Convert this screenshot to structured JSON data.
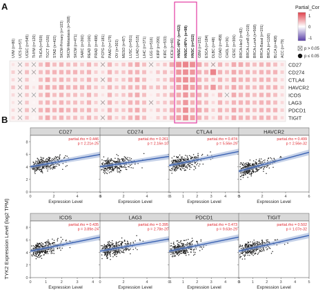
{
  "panels": {
    "a": "A",
    "b": "B"
  },
  "legend": {
    "title": "Partial_Cor",
    "ticks": [
      "1",
      "0",
      "-1"
    ],
    "dots": [
      "p > 0.05",
      "p ≤ 0.05"
    ]
  },
  "chart_data": [
    {
      "type": "heatmap",
      "columns": [
        "UVM (n=80)",
        "UCS (n=57)",
        "UCEC (n=545)",
        "THYM (n=120)",
        "THCA (n=509)",
        "TGCT (n=150)",
        "STAD (n=415)",
        "SKCM-Primary (n=103)",
        "SKCM-Metastasis (n=368)",
        "SKCM (n=471)",
        "SARC (n=260)",
        "READ (n=166)",
        "PRAD (n=498)",
        "PCPG (n=181)",
        "PAAD (n=179)",
        "OV (n=303)",
        "MESO (n=87)",
        "LUSC (n=501)",
        "LUAD (n=515)",
        "LIHC (n=371)",
        "LGG (n=516)",
        "KIRP (n=290)",
        "KIRC (n=533)",
        "KICH (n=66)",
        "HNSC-HPV- (n=422)",
        "HNSC-HPV+ (n=98)",
        "HNSC (n=522)",
        "GBM (n=153)",
        "ESCA (n=184)",
        "DLBC (n=48)",
        "COAD (n=458)",
        "CHOL (n=36)",
        "CESC (n=306)",
        "BRCA-Her2 (n=82)",
        "BRCA-LumB (n=219)",
        "BRCA-LumA (n=568)",
        "BRCA-Basal (n=191)",
        "BRCA (n=1100)",
        "BLCA (n=408)",
        "ACC (n=79)"
      ],
      "rows": [
        "CD27",
        "CD274",
        "CTLA4",
        "HAVCR2",
        "ICOS",
        "LAG3",
        "PDCD1",
        "TIGIT"
      ],
      "values": [
        [
          0.15,
          -0.05,
          0.3,
          0.05,
          0.35,
          0.45,
          0.35,
          0.4,
          0.35,
          0.35,
          0.3,
          0.4,
          0.3,
          0.15,
          0.4,
          0.25,
          0.3,
          0.4,
          0.45,
          0.35,
          0.1,
          0.25,
          0.3,
          0.45,
          0.6,
          0.65,
          0.6,
          0.45,
          0.35,
          0.2,
          0.4,
          0.3,
          0.45,
          0.45,
          0.4,
          0.35,
          0.4,
          0.4,
          0.35,
          0.2
        ],
        [
          0.25,
          0.1,
          0.35,
          0.1,
          0.35,
          0.4,
          0.4,
          0.4,
          0.4,
          0.4,
          0.35,
          0.4,
          0.25,
          0.2,
          0.4,
          0.3,
          0.3,
          0.4,
          0.4,
          0.35,
          0.15,
          0.3,
          0.35,
          0.25,
          0.55,
          0.6,
          0.55,
          0.4,
          0.4,
          0.65,
          0.4,
          0.35,
          0.45,
          0.4,
          0.4,
          0.35,
          0.4,
          0.4,
          0.4,
          0.25
        ],
        [
          0.2,
          0.05,
          0.3,
          0.05,
          0.35,
          0.45,
          0.35,
          0.4,
          0.35,
          0.35,
          0.3,
          0.4,
          0.3,
          0.15,
          0.4,
          0.25,
          0.3,
          0.4,
          0.45,
          0.35,
          0.1,
          0.25,
          0.3,
          0.4,
          0.55,
          0.6,
          0.55,
          0.4,
          0.35,
          0.3,
          0.4,
          0.3,
          0.45,
          0.4,
          0.4,
          0.35,
          0.4,
          0.4,
          0.35,
          0.2
        ],
        [
          0.3,
          0.1,
          0.35,
          0.15,
          0.4,
          0.45,
          0.4,
          0.45,
          0.4,
          0.4,
          0.4,
          0.4,
          0.3,
          0.25,
          0.4,
          0.3,
          0.35,
          0.4,
          0.4,
          0.4,
          0.3,
          0.35,
          0.35,
          0.3,
          0.5,
          0.6,
          0.5,
          0.45,
          0.4,
          0.55,
          0.4,
          0.35,
          0.45,
          0.4,
          0.4,
          0.35,
          0.4,
          0.4,
          0.4,
          0.25
        ],
        [
          0.2,
          0.05,
          0.3,
          -0.05,
          0.35,
          0.45,
          0.35,
          0.4,
          0.35,
          0.35,
          0.3,
          0.4,
          0.3,
          0.15,
          0.4,
          0.25,
          0.3,
          0.4,
          0.45,
          0.35,
          0.1,
          0.25,
          0.3,
          0.4,
          0.45,
          0.55,
          0.45,
          0.4,
          0.35,
          0.15,
          0.4,
          0.05,
          0.45,
          0.4,
          0.4,
          0.35,
          0.4,
          0.4,
          0.35,
          0.2
        ],
        [
          0.15,
          -0.05,
          0.3,
          0.05,
          0.35,
          0.4,
          0.35,
          0.4,
          0.35,
          0.35,
          0.3,
          0.4,
          0.25,
          0.15,
          0.4,
          0.25,
          0.3,
          0.4,
          0.4,
          0.35,
          0.15,
          0.25,
          0.3,
          0.35,
          0.4,
          0.55,
          0.4,
          0.4,
          0.35,
          0.2,
          0.4,
          0.3,
          0.4,
          0.4,
          0.4,
          0.35,
          0.4,
          0.4,
          0.35,
          0.2
        ],
        [
          0.2,
          0.05,
          0.35,
          0.05,
          0.4,
          0.45,
          0.4,
          0.45,
          0.4,
          0.4,
          0.35,
          0.4,
          0.3,
          0.2,
          0.4,
          0.3,
          0.3,
          0.4,
          0.45,
          0.35,
          0.15,
          0.3,
          0.3,
          0.4,
          0.45,
          0.6,
          0.45,
          0.45,
          0.4,
          0.25,
          0.4,
          0.35,
          0.45,
          0.4,
          0.4,
          0.35,
          0.4,
          0.4,
          0.4,
          0.25
        ],
        [
          0.2,
          0.05,
          0.3,
          0.05,
          0.35,
          0.45,
          0.35,
          0.4,
          0.35,
          0.35,
          0.3,
          0.4,
          0.3,
          0.15,
          0.4,
          0.25,
          0.3,
          0.4,
          0.45,
          0.35,
          0.1,
          0.25,
          0.3,
          0.4,
          0.5,
          0.6,
          0.5,
          0.4,
          0.35,
          0.2,
          0.4,
          0.3,
          0.45,
          0.4,
          0.4,
          0.35,
          0.4,
          0.4,
          0.35,
          0.2
        ]
      ],
      "not_significant": [
        [
          0,
          1
        ],
        [
          0,
          3
        ],
        [
          0,
          13
        ],
        [
          0,
          20
        ],
        [
          0,
          29
        ],
        [
          1,
          1
        ],
        [
          1,
          3
        ],
        [
          2,
          1
        ],
        [
          2,
          13
        ],
        [
          3,
          1
        ],
        [
          4,
          1
        ],
        [
          4,
          3
        ],
        [
          4,
          31
        ],
        [
          5,
          1
        ],
        [
          5,
          13
        ],
        [
          5,
          20
        ],
        [
          6,
          1
        ],
        [
          6,
          3
        ],
        [
          7,
          1
        ],
        [
          7,
          13
        ]
      ],
      "highlighted_columns": [
        "HNSC-HPV- (n=422)",
        "HNSC-HPV+ (n=98)",
        "HNSC (n=522)"
      ],
      "colors": {
        "positive": "#e0424c",
        "negative": "#5a3fa8",
        "highlight_box": "#e23aa0"
      }
    },
    {
      "type": "scatter",
      "title": "CD27",
      "stat": {
        "rho": "partial.rho = 0.446",
        "p": "p = 2.21e-25"
      },
      "xlim": [
        0,
        6
      ],
      "ylim": [
        0,
        9
      ],
      "xticks": [
        "0",
        "2",
        "4",
        "6"
      ],
      "yticks": [
        "0",
        "2",
        "4",
        "6",
        "8"
      ],
      "fit": {
        "intercept": 4.0,
        "slope": 0.33
      }
    },
    {
      "type": "scatter",
      "title": "CD274",
      "stat": {
        "rho": "partial.rho = 0.261",
        "p": "p = 2.16e-10"
      },
      "xlim": [
        0,
        6
      ],
      "ylim": [
        0,
        9
      ],
      "xticks": [
        "0",
        "2",
        "4",
        "6"
      ],
      "yticks": [
        "0",
        "2",
        "4",
        "6",
        "8"
      ],
      "fit": {
        "intercept": 4.0,
        "slope": 0.28
      }
    },
    {
      "type": "scatter",
      "title": "CTLA4",
      "stat": {
        "rho": "partial.rho = 0.474",
        "p": "p = 5.56e-29"
      },
      "xlim": [
        0,
        5
      ],
      "ylim": [
        0,
        9
      ],
      "xticks": [
        "0",
        "1",
        "2",
        "3",
        "4",
        "5"
      ],
      "yticks": [
        "0",
        "2",
        "4",
        "6",
        "8"
      ],
      "fit": {
        "intercept": 4.2,
        "slope": 0.45
      }
    },
    {
      "type": "scatter",
      "title": "HAVCR2",
      "stat": {
        "rho": "partial.rho = 0.499",
        "p": "p = 2.56e-32"
      },
      "xlim": [
        0,
        6
      ],
      "ylim": [
        0,
        9
      ],
      "xticks": [
        "0",
        "2",
        "4",
        "6"
      ],
      "yticks": [
        "0",
        "2",
        "4",
        "6",
        "8"
      ],
      "fit": {
        "intercept": 3.3,
        "slope": 0.5
      }
    },
    {
      "type": "scatter",
      "title": "ICOS",
      "stat": {
        "rho": "partial.rho = 0.435",
        "p": "p = 3.89e-24"
      },
      "xlim": [
        0,
        4.5
      ],
      "ylim": [
        0,
        9
      ],
      "xticks": [
        "0",
        "1",
        "2",
        "3",
        "4"
      ],
      "yticks": [
        "0",
        "2",
        "4",
        "6",
        "8"
      ],
      "fit": {
        "intercept": 4.2,
        "slope": 0.5
      }
    },
    {
      "type": "scatter",
      "title": "LAG3",
      "stat": {
        "rho": "partial.rho = 0.395",
        "p": "p = 2.78e-20"
      },
      "xlim": [
        0,
        6
      ],
      "ylim": [
        0,
        9
      ],
      "xticks": [
        "0",
        "2",
        "4",
        "6"
      ],
      "yticks": [
        "0",
        "2",
        "4",
        "6",
        "8"
      ],
      "fit": {
        "intercept": 4.2,
        "slope": 0.33
      }
    },
    {
      "type": "scatter",
      "title": "PDCD1",
      "stat": {
        "rho": "partial.rho = 0.473",
        "p": "p = 9.63e-29"
      },
      "xlim": [
        0,
        5
      ],
      "ylim": [
        0,
        9
      ],
      "xticks": [
        "0",
        "1",
        "2",
        "3",
        "4",
        "5"
      ],
      "yticks": [
        "0",
        "2",
        "4",
        "6",
        "8"
      ],
      "fit": {
        "intercept": 4.2,
        "slope": 0.45
      }
    },
    {
      "type": "scatter",
      "title": "TIGIT",
      "stat": {
        "rho": "partial.rho = 0.502",
        "p": "p = 1.07e-32"
      },
      "xlim": [
        0,
        5
      ],
      "ylim": [
        0,
        9
      ],
      "xticks": [
        "0",
        "1",
        "2",
        "3",
        "4",
        "5"
      ],
      "yticks": [
        "0",
        "2",
        "4",
        "6",
        "8"
      ],
      "fit": {
        "intercept": 4.2,
        "slope": 0.5
      }
    }
  ],
  "axes": {
    "xlabel": "Expression Level",
    "ylabel": "TYK2 Expression Level (log2 TPM)"
  }
}
